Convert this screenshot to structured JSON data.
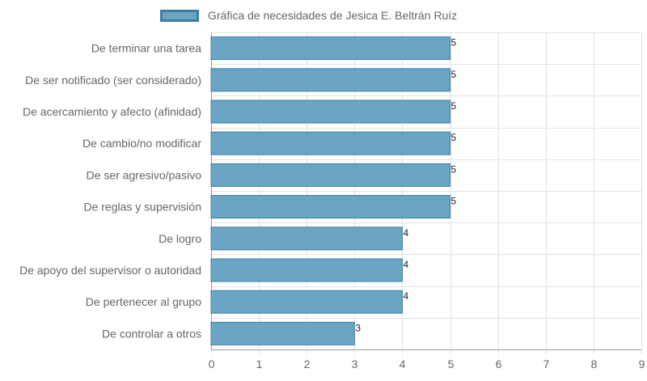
{
  "chart_data": {
    "type": "bar",
    "orientation": "horizontal",
    "categories": [
      "De terminar una tarea",
      "De ser notificado (ser considerado)",
      "De acercamiento y afecto (afinidad)",
      "De cambio/no modificar",
      "De ser agresivo/pasivo",
      "De reglas y supervisión",
      "De logro",
      "De apoyo del supervisor o autoridad",
      "De pertenecer al grupo",
      "De controlar a otros"
    ],
    "series": [
      {
        "name": "Gráfica de necesidades de Jesica E. Beltrán Ruíz",
        "values": [
          5,
          5,
          5,
          5,
          5,
          5,
          4,
          4,
          4,
          3
        ]
      }
    ],
    "xlim": [
      0,
      9
    ],
    "x_ticks": [
      "0",
      "1",
      "2",
      "3",
      "4",
      "5",
      "6",
      "7",
      "8",
      "9"
    ],
    "grid": true,
    "legend_position": "top",
    "data_labels": true,
    "colors": {
      "bar_fill": "#6ba5c4",
      "bar_border": "#3f7ea3",
      "grid": "#e3e3e3",
      "axis": "#9a9a9a",
      "label_text": "#666666",
      "value_text": "#222222"
    }
  }
}
